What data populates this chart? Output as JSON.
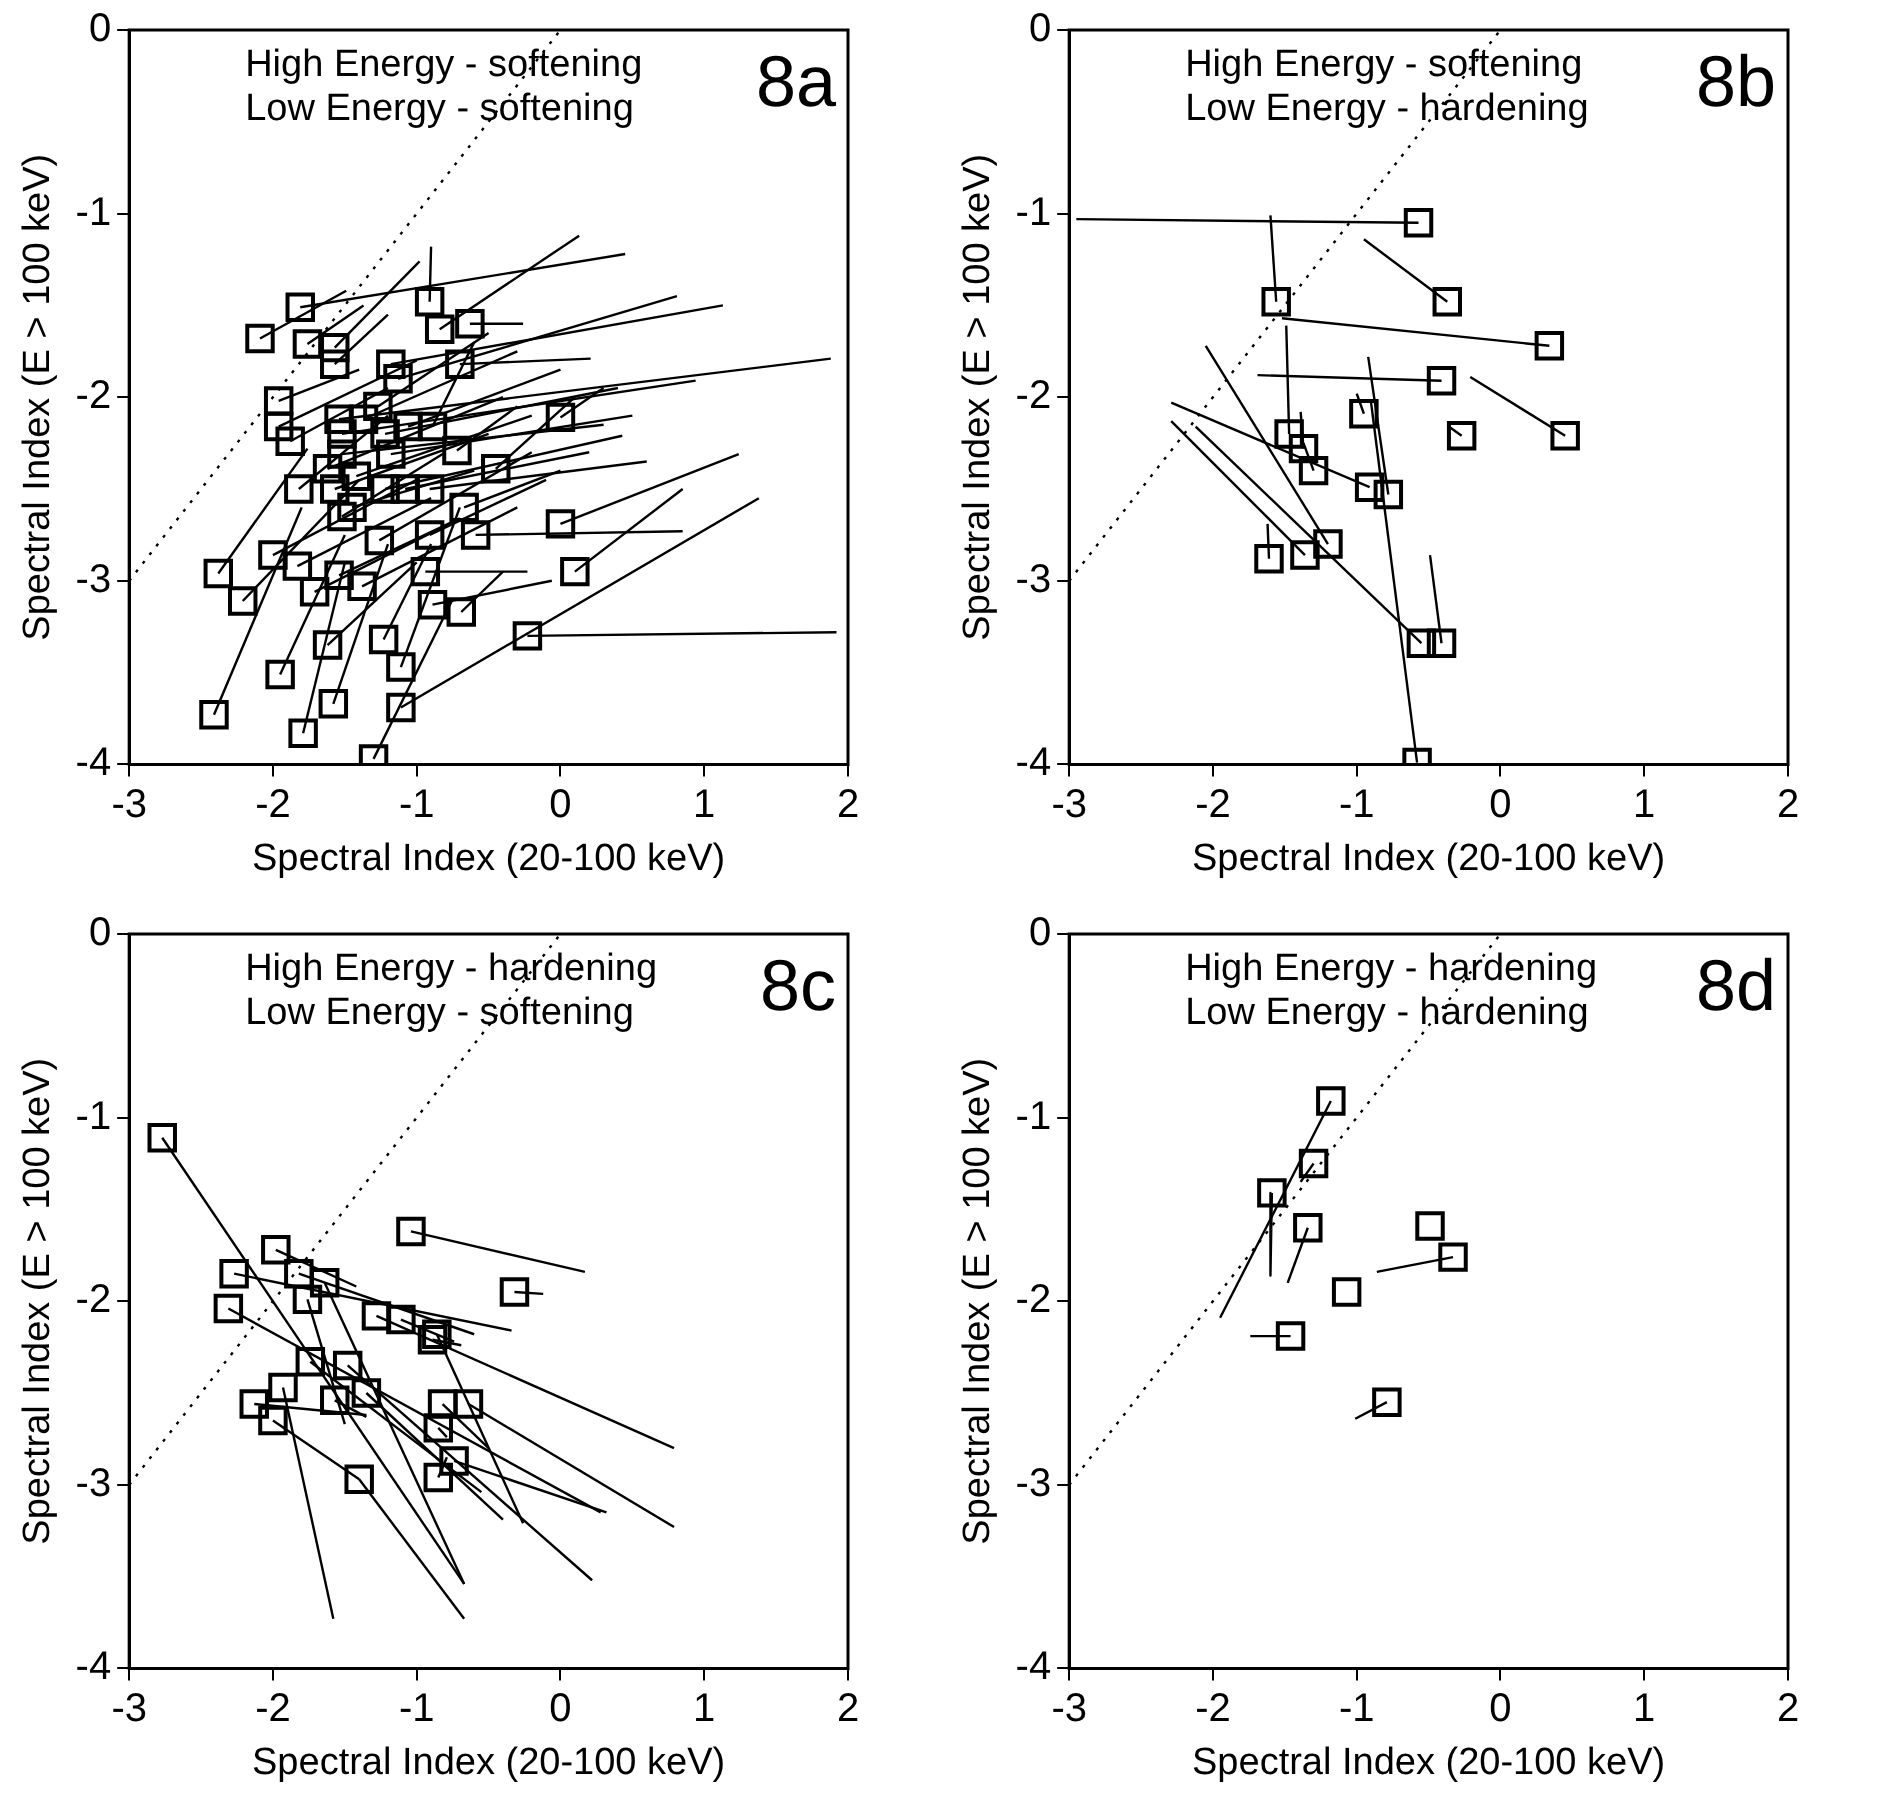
{
  "chart_data": [
    {
      "type": "scatter",
      "xlabel": "Spectral Index (20-100 keV)",
      "ylabel": "Spectral Index (E > 100 keV)",
      "annotations": [
        "High Energy - softening",
        "Low Energy - softening",
        "8a"
      ],
      "xlim": [
        -3,
        2
      ],
      "ylim": [
        -4,
        0
      ],
      "xticks": [
        -3,
        -2,
        -1,
        0,
        1,
        2
      ],
      "yticks": [
        -4,
        -3,
        -2,
        -1,
        0
      ],
      "grid": false,
      "legend": false,
      "series": [
        {
          "type": "line",
          "color": "#000000",
          "line_style": "dotted",
          "marker": "none",
          "x": [
            -3,
            0
          ],
          "values": [
            -3,
            0
          ]
        },
        {
          "type": "line",
          "color": "#000000",
          "x": [
            -1.81,
            0.45
          ],
          "values": [
            -1.51,
            -1.22
          ]
        },
        {
          "type": "line",
          "color": "#000000",
          "x": [
            -2.09,
            -1.49
          ],
          "values": [
            -1.68,
            -1.42
          ]
        },
        {
          "type": "line",
          "color": "#000000",
          "x": [
            -1.76,
            -1.37
          ],
          "values": [
            -1.71,
            -1.5
          ]
        },
        {
          "type": "line",
          "color": "#000000",
          "x": [
            -1.57,
            -0.98
          ],
          "values": [
            -1.73,
            -1.26
          ]
        },
        {
          "type": "line",
          "color": "#000000",
          "x": [
            -1.57,
            -1.2
          ],
          "values": [
            -1.82,
            -1.55
          ]
        },
        {
          "type": "line",
          "color": "#000000",
          "x": [
            -0.91,
            -0.9
          ],
          "values": [
            -1.48,
            -1.18
          ]
        },
        {
          "type": "line",
          "color": "#000000",
          "x": [
            -0.84,
            0.13
          ],
          "values": [
            -1.63,
            -1.12
          ]
        },
        {
          "type": "line",
          "color": "#000000",
          "x": [
            -0.63,
            -0.26
          ],
          "values": [
            -1.6,
            -1.6
          ]
        },
        {
          "type": "line",
          "color": "#000000",
          "x": [
            -1.18,
            1.13
          ],
          "values": [
            -1.82,
            -1.5
          ]
        },
        {
          "type": "line",
          "color": "#000000",
          "x": [
            -1.13,
            0.81
          ],
          "values": [
            -1.9,
            -1.45
          ]
        },
        {
          "type": "line",
          "color": "#000000",
          "x": [
            -0.7,
            0.21
          ],
          "values": [
            -1.82,
            -1.79
          ]
        },
        {
          "type": "line",
          "color": "#000000",
          "x": [
            -1.96,
            -1.4
          ],
          "values": [
            -2.02,
            -1.85
          ]
        },
        {
          "type": "line",
          "color": "#000000",
          "x": [
            -1.96,
            -1.0
          ],
          "values": [
            -2.16,
            -1.8
          ]
        },
        {
          "type": "line",
          "color": "#000000",
          "x": [
            -1.88,
            -1.2
          ],
          "values": [
            -2.24,
            -1.95
          ]
        },
        {
          "type": "line",
          "color": "#000000",
          "x": [
            -1.54,
            1.88
          ],
          "values": [
            -2.12,
            -1.79
          ]
        },
        {
          "type": "line",
          "color": "#000000",
          "x": [
            -1.52,
            0.94
          ],
          "values": [
            -2.2,
            -1.91
          ]
        },
        {
          "type": "line",
          "color": "#000000",
          "x": [
            -1.37,
            -0.3
          ],
          "values": [
            -2.12,
            -1.75
          ]
        },
        {
          "type": "line",
          "color": "#000000",
          "x": [
            -1.27,
            -0.5
          ],
          "values": [
            -2.05,
            -1.65
          ]
        },
        {
          "type": "line",
          "color": "#000000",
          "x": [
            -1.22,
            0.4
          ],
          "values": [
            -2.2,
            -1.95
          ]
        },
        {
          "type": "line",
          "color": "#000000",
          "x": [
            -1.06,
            0.0
          ],
          "values": [
            -2.16,
            -1.85
          ]
        },
        {
          "type": "line",
          "color": "#000000",
          "x": [
            -0.89,
            -0.6
          ],
          "values": [
            -2.16,
            -1.7
          ]
        },
        {
          "type": "line",
          "color": "#000000",
          "x": [
            -0.72,
            -0.3
          ],
          "values": [
            -2.29,
            -2.05
          ]
        },
        {
          "type": "line",
          "color": "#000000",
          "x": [
            -0.45,
            0.1
          ],
          "values": [
            -2.39,
            -2.0
          ]
        },
        {
          "type": "line",
          "color": "#000000",
          "x": [
            0.0,
            0.3
          ],
          "values": [
            -2.11,
            -1.95
          ]
        },
        {
          "type": "line",
          "color": "#000000",
          "x": [
            -1.82,
            -1.2
          ],
          "values": [
            -2.5,
            -2.1
          ]
        },
        {
          "type": "line",
          "color": "#000000",
          "x": [
            -1.57,
            -0.5
          ],
          "values": [
            -2.5,
            -2.2
          ]
        },
        {
          "type": "line",
          "color": "#000000",
          "x": [
            -1.42,
            -0.2
          ],
          "values": [
            -2.43,
            -2.1
          ]
        },
        {
          "type": "line",
          "color": "#000000",
          "x": [
            -1.22,
            0.43
          ],
          "values": [
            -2.5,
            -2.21
          ]
        },
        {
          "type": "line",
          "color": "#000000",
          "x": [
            -1.08,
            0.2
          ],
          "values": [
            -2.5,
            -2.3
          ]
        },
        {
          "type": "line",
          "color": "#000000",
          "x": [
            -0.91,
            0.6
          ],
          "values": [
            -2.5,
            -2.35
          ]
        },
        {
          "type": "line",
          "color": "#000000",
          "x": [
            -0.67,
            0.0
          ],
          "values": [
            -2.6,
            -2.4
          ]
        },
        {
          "type": "line",
          "color": "#000000",
          "x": [
            -1.52,
            -0.8
          ],
          "values": [
            -2.65,
            -2.3
          ]
        },
        {
          "type": "line",
          "color": "#000000",
          "x": [
            -1.45,
            -0.6
          ],
          "values": [
            -2.6,
            -2.4
          ]
        },
        {
          "type": "line",
          "color": "#000000",
          "x": [
            -2.0,
            -1.0
          ],
          "values": [
            -2.86,
            -2.45
          ]
        },
        {
          "type": "line",
          "color": "#000000",
          "x": [
            -2.38,
            -1.76
          ],
          "values": [
            -2.96,
            -2.28
          ]
        },
        {
          "type": "line",
          "color": "#000000",
          "x": [
            -2.21,
            -1.4
          ],
          "values": [
            -3.11,
            -2.45
          ]
        },
        {
          "type": "line",
          "color": "#000000",
          "x": [
            -1.83,
            -0.9
          ],
          "values": [
            -2.92,
            -2.55
          ]
        },
        {
          "type": "line",
          "color": "#000000",
          "x": [
            -1.71,
            -0.8
          ],
          "values": [
            -3.06,
            -2.7
          ]
        },
        {
          "type": "line",
          "color": "#000000",
          "x": [
            -1.54,
            -0.7
          ],
          "values": [
            -2.97,
            -2.66
          ]
        },
        {
          "type": "line",
          "color": "#000000",
          "x": [
            -1.38,
            -0.3
          ],
          "values": [
            -3.03,
            -2.6
          ]
        },
        {
          "type": "line",
          "color": "#000000",
          "x": [
            -1.26,
            -0.2
          ],
          "values": [
            -2.78,
            -2.3
          ]
        },
        {
          "type": "line",
          "color": "#000000",
          "x": [
            -0.91,
            -0.1
          ],
          "values": [
            -2.75,
            -2.45
          ]
        },
        {
          "type": "line",
          "color": "#000000",
          "x": [
            -0.59,
            0.85
          ],
          "values": [
            -2.75,
            -2.73
          ]
        },
        {
          "type": "line",
          "color": "#000000",
          "x": [
            0.0,
            1.24
          ],
          "values": [
            -2.69,
            -2.31
          ]
        },
        {
          "type": "line",
          "color": "#000000",
          "x": [
            0.1,
            0.85
          ],
          "values": [
            -2.95,
            -2.5
          ]
        },
        {
          "type": "line",
          "color": "#000000",
          "x": [
            -0.94,
            -0.23
          ],
          "values": [
            -2.95,
            -2.95
          ]
        },
        {
          "type": "line",
          "color": "#000000",
          "x": [
            -0.89,
            -0.06
          ],
          "values": [
            -3.13,
            -3.0
          ]
        },
        {
          "type": "line",
          "color": "#000000",
          "x": [
            -0.69,
            -0.4
          ],
          "values": [
            -3.17,
            -2.95
          ]
        },
        {
          "type": "line",
          "color": "#000000",
          "x": [
            -0.23,
            1.92
          ],
          "values": [
            -3.3,
            -3.28
          ]
        },
        {
          "type": "line",
          "color": "#000000",
          "x": [
            -1.62,
            -1.0
          ],
          "values": [
            -3.35,
            -2.9
          ]
        },
        {
          "type": "line",
          "color": "#000000",
          "x": [
            -1.23,
            -0.9
          ],
          "values": [
            -3.32,
            -2.8
          ]
        },
        {
          "type": "line",
          "color": "#000000",
          "x": [
            -1.11,
            -0.7
          ],
          "values": [
            -3.47,
            -2.6
          ]
        },
        {
          "type": "line",
          "color": "#000000",
          "x": [
            -1.95,
            -1.5
          ],
          "values": [
            -3.51,
            -2.75
          ]
        },
        {
          "type": "line",
          "color": "#000000",
          "x": [
            -1.58,
            -1.2
          ],
          "values": [
            -3.67,
            -2.8
          ]
        },
        {
          "type": "line",
          "color": "#000000",
          "x": [
            -1.11,
            1.38
          ],
          "values": [
            -3.69,
            -2.55
          ]
        },
        {
          "type": "line",
          "color": "#000000",
          "x": [
            -2.41,
            -1.8
          ],
          "values": [
            -3.73,
            -2.6
          ]
        },
        {
          "type": "line",
          "color": "#000000",
          "x": [
            -1.79,
            -1.5
          ],
          "values": [
            -3.83,
            -2.9
          ]
        },
        {
          "type": "line",
          "color": "#000000",
          "x": [
            -1.3,
            -0.75
          ],
          "values": [
            -3.97,
            -3.1
          ]
        },
        {
          "type": "line",
          "color": "#000000",
          "x": [
            -1.52,
            0.3
          ],
          "values": [
            -2.31,
            -2.15
          ]
        },
        {
          "type": "line",
          "color": "#000000",
          "x": [
            -1.18,
            0.5
          ],
          "values": [
            -2.31,
            -2.1
          ]
        },
        {
          "type": "line",
          "color": "#000000",
          "x": [
            -1.62,
            -0.4
          ],
          "values": [
            -2.39,
            -2.0
          ]
        },
        {
          "type": "scatter",
          "color": "#000000",
          "marker": "square",
          "x": [
            -1.81,
            -2.09,
            -1.76,
            -1.57,
            -1.57,
            -0.91,
            -0.84,
            -0.63,
            -1.18,
            -1.13,
            -0.7,
            -1.96,
            -1.96,
            -1.88,
            -1.54,
            -1.52,
            -1.37,
            -1.27,
            -1.22,
            -1.06,
            -0.89,
            -0.72,
            -0.45,
            0.0,
            -1.82,
            -1.57,
            -1.42,
            -1.22,
            -1.08,
            -0.91,
            -0.67,
            -1.52,
            -1.45,
            -2.0,
            -2.38,
            -2.21,
            -1.83,
            -1.71,
            -1.54,
            -1.38,
            -1.26,
            -0.91,
            -0.59,
            0.0,
            0.1,
            -0.94,
            -0.89,
            -0.69,
            -0.23,
            -1.62,
            -1.23,
            -1.11,
            -1.95,
            -1.58,
            -1.11,
            -2.41,
            -1.79,
            -1.3,
            -1.52,
            -1.18,
            -1.62
          ],
          "values": [
            -1.51,
            -1.68,
            -1.71,
            -1.73,
            -1.82,
            -1.48,
            -1.63,
            -1.6,
            -1.82,
            -1.9,
            -1.82,
            -2.02,
            -2.16,
            -2.24,
            -2.12,
            -2.2,
            -2.12,
            -2.05,
            -2.2,
            -2.16,
            -2.16,
            -2.29,
            -2.39,
            -2.11,
            -2.5,
            -2.5,
            -2.43,
            -2.5,
            -2.5,
            -2.5,
            -2.6,
            -2.65,
            -2.6,
            -2.86,
            -2.96,
            -3.11,
            -2.92,
            -3.06,
            -2.97,
            -3.03,
            -2.78,
            -2.75,
            -2.75,
            -2.69,
            -2.95,
            -2.95,
            -3.13,
            -3.17,
            -3.3,
            -3.35,
            -3.32,
            -3.47,
            -3.51,
            -3.67,
            -3.69,
            -3.73,
            -3.83,
            -3.97,
            -2.31,
            -2.31,
            -2.39
          ]
        }
      ]
    },
    {
      "type": "scatter",
      "xlabel": "Spectral Index (20-100 keV)",
      "ylabel": "Spectral Index (E > 100 keV)",
      "annotations": [
        "High Energy - softening",
        "Low Energy - hardening",
        "8b"
      ],
      "xlim": [
        -3,
        2
      ],
      "ylim": [
        -4,
        0
      ],
      "xticks": [
        -3,
        -2,
        -1,
        0,
        1,
        2
      ],
      "yticks": [
        -4,
        -3,
        -2,
        -1,
        0
      ],
      "grid": false,
      "legend": false,
      "series": [
        {
          "type": "line",
          "color": "#000000",
          "line_style": "dotted",
          "marker": "none",
          "x": [
            -3,
            0
          ],
          "values": [
            -3,
            0
          ]
        },
        {
          "type": "line",
          "color": "#000000",
          "x": [
            -0.57,
            -2.95
          ],
          "values": [
            -1.05,
            -1.03
          ]
        },
        {
          "type": "line",
          "color": "#000000",
          "x": [
            -1.56,
            -1.6
          ],
          "values": [
            -1.48,
            -1.01
          ]
        },
        {
          "type": "line",
          "color": "#000000",
          "x": [
            -0.37,
            -0.95
          ],
          "values": [
            -1.48,
            -1.14
          ]
        },
        {
          "type": "line",
          "color": "#000000",
          "x": [
            0.34,
            -1.52
          ],
          "values": [
            -1.72,
            -1.57
          ]
        },
        {
          "type": "line",
          "color": "#000000",
          "x": [
            -0.41,
            -1.69
          ],
          "values": [
            -1.91,
            -1.88
          ]
        },
        {
          "type": "line",
          "color": "#000000",
          "x": [
            0.45,
            -0.21
          ],
          "values": [
            -2.21,
            -1.89
          ]
        },
        {
          "type": "line",
          "color": "#000000",
          "x": [
            -1.47,
            -1.49
          ],
          "values": [
            -2.2,
            -1.61
          ]
        },
        {
          "type": "line",
          "color": "#000000",
          "x": [
            -1.37,
            -1.39
          ],
          "values": [
            -2.28,
            -2.08
          ]
        },
        {
          "type": "line",
          "color": "#000000",
          "x": [
            -1.3,
            -1.37
          ],
          "values": [
            -2.4,
            -2.25
          ]
        },
        {
          "type": "line",
          "color": "#000000",
          "x": [
            -0.95,
            -1.0
          ],
          "values": [
            -2.09,
            -1.98
          ]
        },
        {
          "type": "line",
          "color": "#000000",
          "x": [
            -0.27,
            -0.36
          ],
          "values": [
            -2.21,
            -2.16
          ]
        },
        {
          "type": "line",
          "color": "#000000",
          "x": [
            -0.91,
            -2.29
          ],
          "values": [
            -2.49,
            -2.03
          ]
        },
        {
          "type": "line",
          "color": "#000000",
          "x": [
            -0.78,
            -0.92
          ],
          "values": [
            -2.53,
            -1.78
          ]
        },
        {
          "type": "line",
          "color": "#000000",
          "x": [
            -1.61,
            -1.62
          ],
          "values": [
            -2.88,
            -2.69
          ]
        },
        {
          "type": "line",
          "color": "#000000",
          "x": [
            -1.36,
            -2.29
          ],
          "values": [
            -2.86,
            -2.13
          ]
        },
        {
          "type": "line",
          "color": "#000000",
          "x": [
            -1.2,
            -2.05
          ],
          "values": [
            -2.8,
            -1.72
          ]
        },
        {
          "type": "line",
          "color": "#000000",
          "x": [
            -0.55,
            -2.12
          ],
          "values": [
            -3.34,
            -2.16
          ]
        },
        {
          "type": "line",
          "color": "#000000",
          "x": [
            -0.41,
            -0.49
          ],
          "values": [
            -3.34,
            -2.86
          ]
        },
        {
          "type": "line",
          "color": "#000000",
          "x": [
            -0.58,
            -0.9
          ],
          "values": [
            -3.99,
            -2.03
          ]
        },
        {
          "type": "scatter",
          "color": "#000000",
          "marker": "square",
          "x": [
            -0.57,
            -1.56,
            -0.37,
            0.34,
            -0.41,
            0.45,
            -1.47,
            -1.37,
            -1.3,
            -0.95,
            -0.27,
            -0.91,
            -0.78,
            -1.61,
            -1.36,
            -1.2,
            -0.55,
            -0.41,
            -0.58
          ],
          "values": [
            -1.05,
            -1.48,
            -1.48,
            -1.72,
            -1.91,
            -2.21,
            -2.2,
            -2.28,
            -2.4,
            -2.09,
            -2.21,
            -2.49,
            -2.53,
            -2.88,
            -2.86,
            -2.8,
            -3.34,
            -3.34,
            -3.99
          ]
        }
      ]
    },
    {
      "type": "scatter",
      "xlabel": "Spectral Index (20-100 keV)",
      "ylabel": "Spectral Index (E > 100 keV)",
      "annotations": [
        "High Energy - hardening",
        "Low Energy - softening",
        "8c"
      ],
      "xlim": [
        -3,
        2
      ],
      "ylim": [
        -4,
        0
      ],
      "xticks": [
        -3,
        -2,
        -1,
        0,
        1,
        2
      ],
      "yticks": [
        -4,
        -3,
        -2,
        -1,
        0
      ],
      "grid": false,
      "legend": false,
      "series": [
        {
          "type": "line",
          "color": "#000000",
          "line_style": "dotted",
          "marker": "none",
          "x": [
            -3,
            0
          ],
          "values": [
            -3,
            0
          ]
        },
        {
          "type": "line",
          "color": "#000000",
          "x": [
            -2.77,
            -0.67
          ],
          "values": [
            -1.11,
            -3.54
          ]
        },
        {
          "type": "line",
          "color": "#000000",
          "x": [
            -1.04,
            0.17
          ],
          "values": [
            -1.62,
            -1.84
          ]
        },
        {
          "type": "line",
          "color": "#000000",
          "x": [
            -0.32,
            -0.12
          ],
          "values": [
            -1.95,
            -1.96
          ]
        },
        {
          "type": "line",
          "color": "#000000",
          "x": [
            -1.98,
            -1.42
          ],
          "values": [
            -1.72,
            -1.92
          ]
        },
        {
          "type": "line",
          "color": "#000000",
          "x": [
            -2.27,
            -0.34
          ],
          "values": [
            -1.85,
            -2.16
          ]
        },
        {
          "type": "line",
          "color": "#000000",
          "x": [
            -1.82,
            -0.6
          ],
          "values": [
            -1.85,
            -2.18
          ]
        },
        {
          "type": "line",
          "color": "#000000",
          "x": [
            -1.64,
            -0.67
          ],
          "values": [
            -1.9,
            -3.54
          ]
        },
        {
          "type": "line",
          "color": "#000000",
          "x": [
            -2.31,
            0.28
          ],
          "values": [
            -2.04,
            -3.15
          ]
        },
        {
          "type": "line",
          "color": "#000000",
          "x": [
            -1.76,
            -1.5
          ],
          "values": [
            -1.99,
            -2.67
          ]
        },
        {
          "type": "line",
          "color": "#000000",
          "x": [
            -1.28,
            0.79
          ],
          "values": [
            -2.08,
            -2.8
          ]
        },
        {
          "type": "line",
          "color": "#000000",
          "x": [
            -1.11,
            -0.74
          ],
          "values": [
            -2.1,
            -2.22
          ]
        },
        {
          "type": "line",
          "color": "#000000",
          "x": [
            -0.89,
            -0.69
          ],
          "values": [
            -2.21,
            -2.24
          ]
        },
        {
          "type": "line",
          "color": "#000000",
          "x": [
            -0.86,
            -0.26
          ],
          "values": [
            -2.18,
            -3.21
          ]
        },
        {
          "type": "line",
          "color": "#000000",
          "x": [
            -1.74,
            -0.55
          ],
          "values": [
            -2.33,
            -3.04
          ]
        },
        {
          "type": "line",
          "color": "#000000",
          "x": [
            -1.48,
            0.22
          ],
          "values": [
            -2.35,
            -3.52
          ]
        },
        {
          "type": "line",
          "color": "#000000",
          "x": [
            -1.35,
            -0.4
          ],
          "values": [
            -2.5,
            -3.19
          ]
        },
        {
          "type": "line",
          "color": "#000000",
          "x": [
            -1.57,
            -1.35
          ],
          "values": [
            -2.54,
            -2.63
          ]
        },
        {
          "type": "line",
          "color": "#000000",
          "x": [
            -1.93,
            -1.58
          ],
          "values": [
            -2.47,
            -3.73
          ]
        },
        {
          "type": "line",
          "color": "#000000",
          "x": [
            -2.13,
            -1.35
          ],
          "values": [
            -2.56,
            -2.62
          ]
        },
        {
          "type": "line",
          "color": "#000000",
          "x": [
            -2.0,
            -1.4
          ],
          "values": [
            -2.65,
            -2.97
          ]
        },
        {
          "type": "line",
          "color": "#000000",
          "x": [
            -1.4,
            -0.67
          ],
          "values": [
            -2.97,
            -3.73
          ]
        },
        {
          "type": "line",
          "color": "#000000",
          "x": [
            -0.82,
            -0.5
          ],
          "values": [
            -2.56,
            -2.8
          ]
        },
        {
          "type": "line",
          "color": "#000000",
          "x": [
            -0.64,
            0.79
          ],
          "values": [
            -2.56,
            -3.23
          ]
        },
        {
          "type": "line",
          "color": "#000000",
          "x": [
            -0.85,
            -0.79
          ],
          "values": [
            -2.69,
            -2.74
          ]
        },
        {
          "type": "line",
          "color": "#000000",
          "x": [
            -0.74,
            0.32
          ],
          "values": [
            -2.87,
            -3.15
          ]
        },
        {
          "type": "line",
          "color": "#000000",
          "x": [
            -0.85,
            -0.79
          ],
          "values": [
            -2.96,
            -2.85
          ]
        },
        {
          "type": "scatter",
          "color": "#000000",
          "marker": "square",
          "x": [
            -2.77,
            -1.04,
            -0.32,
            -1.98,
            -2.27,
            -1.82,
            -1.64,
            -2.31,
            -1.76,
            -1.28,
            -1.11,
            -0.89,
            -0.86,
            -1.74,
            -1.48,
            -1.35,
            -1.57,
            -1.93,
            -2.13,
            -2.0,
            -1.4,
            -0.82,
            -0.64,
            -0.85,
            -0.74,
            -0.85
          ],
          "values": [
            -1.11,
            -1.62,
            -1.95,
            -1.72,
            -1.85,
            -1.85,
            -1.9,
            -2.04,
            -1.99,
            -2.08,
            -2.1,
            -2.21,
            -2.18,
            -2.33,
            -2.35,
            -2.5,
            -2.54,
            -2.47,
            -2.56,
            -2.65,
            -2.97,
            -2.56,
            -2.56,
            -2.69,
            -2.87,
            -2.96
          ]
        }
      ]
    },
    {
      "type": "scatter",
      "xlabel": "Spectral Index (20-100 keV)",
      "ylabel": "Spectral Index (E > 100 keV)",
      "annotations": [
        "High Energy - hardening",
        "Low Energy - hardening",
        "8d"
      ],
      "xlim": [
        -3,
        2
      ],
      "ylim": [
        -4,
        0
      ],
      "xticks": [
        -3,
        -2,
        -1,
        0,
        1,
        2
      ],
      "yticks": [
        -4,
        -3,
        -2,
        -1,
        0
      ],
      "grid": false,
      "legend": false,
      "series": [
        {
          "type": "line",
          "color": "#000000",
          "line_style": "dotted",
          "marker": "none",
          "x": [
            -3,
            0
          ],
          "values": [
            -3,
            0
          ]
        },
        {
          "type": "line",
          "color": "#000000",
          "x": [
            -1.18,
            -1.95
          ],
          "values": [
            -0.91,
            -2.09
          ]
        },
        {
          "type": "line",
          "color": "#000000",
          "x": [
            -1.3,
            -1.39
          ],
          "values": [
            -1.25,
            -1.35
          ]
        },
        {
          "type": "line",
          "color": "#000000",
          "x": [
            -1.59,
            -1.6
          ],
          "values": [
            -1.41,
            -1.86
          ]
        },
        {
          "type": "line",
          "color": "#000000",
          "x": [
            -1.34,
            -1.48
          ],
          "values": [
            -1.6,
            -1.9
          ]
        },
        {
          "type": "line",
          "color": "#000000",
          "x": [
            -0.33,
            -0.86
          ],
          "values": [
            -1.76,
            -1.84
          ]
        },
        {
          "type": "line",
          "color": "#000000",
          "x": [
            -1.46,
            -1.74
          ],
          "values": [
            -2.19,
            -2.19
          ]
        },
        {
          "type": "line",
          "color": "#000000",
          "x": [
            -0.79,
            -1.01
          ],
          "values": [
            -2.55,
            -2.64
          ]
        },
        {
          "type": "scatter",
          "color": "#000000",
          "marker": "square",
          "x": [
            -1.18,
            -1.3,
            -1.59,
            -1.34,
            -0.49,
            -0.33,
            -1.07,
            -1.46,
            -0.79
          ],
          "values": [
            -0.91,
            -1.25,
            -1.41,
            -1.6,
            -1.59,
            -1.76,
            -1.95,
            -2.19,
            -2.55
          ]
        }
      ]
    }
  ]
}
